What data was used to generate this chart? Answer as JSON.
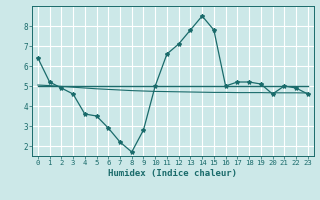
{
  "title": "",
  "xlabel": "Humidex (Indice chaleur)",
  "xlim": [
    -0.5,
    23.5
  ],
  "ylim": [
    1.5,
    9.0
  ],
  "yticks": [
    2,
    3,
    4,
    5,
    6,
    7,
    8
  ],
  "xticks": [
    0,
    1,
    2,
    3,
    4,
    5,
    6,
    7,
    8,
    9,
    10,
    11,
    12,
    13,
    14,
    15,
    16,
    17,
    18,
    19,
    20,
    21,
    22,
    23
  ],
  "background_color": "#cce8e8",
  "grid_color": "#ffffff",
  "line_color": "#1a6b6b",
  "line1_x": [
    0,
    1,
    2,
    3,
    4,
    5,
    6,
    7,
    8,
    9,
    10,
    11,
    12,
    13,
    14,
    15,
    16,
    17,
    18,
    19,
    20,
    21,
    22,
    23
  ],
  "line1_y": [
    6.4,
    5.2,
    4.9,
    4.6,
    3.6,
    3.5,
    2.9,
    2.2,
    1.7,
    2.8,
    5.0,
    6.6,
    7.1,
    7.8,
    8.5,
    7.8,
    5.0,
    5.2,
    5.2,
    5.1,
    4.6,
    5.0,
    4.9,
    4.6
  ],
  "line2_x": [
    0,
    1,
    2,
    3,
    4,
    5,
    6,
    7,
    8,
    9,
    10,
    11,
    12,
    13,
    14,
    15,
    16,
    17,
    18,
    19,
    20,
    21,
    22,
    23
  ],
  "line2_y": [
    5.0,
    5.0,
    5.0,
    5.0,
    5.0,
    5.0,
    5.0,
    5.0,
    5.0,
    5.0,
    5.0,
    5.0,
    5.0,
    5.0,
    5.0,
    5.0,
    5.0,
    5.0,
    5.0,
    5.0,
    5.0,
    5.0,
    5.0,
    5.0
  ],
  "line3_x": [
    0,
    1,
    2,
    3,
    4,
    5,
    6,
    7,
    8,
    9,
    10,
    11,
    12,
    13,
    14,
    15,
    16,
    17,
    18,
    19,
    20,
    21,
    22,
    23
  ],
  "line3_y": [
    5.05,
    5.02,
    4.98,
    4.94,
    4.9,
    4.86,
    4.83,
    4.8,
    4.77,
    4.75,
    4.73,
    4.72,
    4.71,
    4.7,
    4.69,
    4.68,
    4.68,
    4.67,
    4.67,
    4.67,
    4.66,
    4.66,
    4.66,
    4.65
  ]
}
